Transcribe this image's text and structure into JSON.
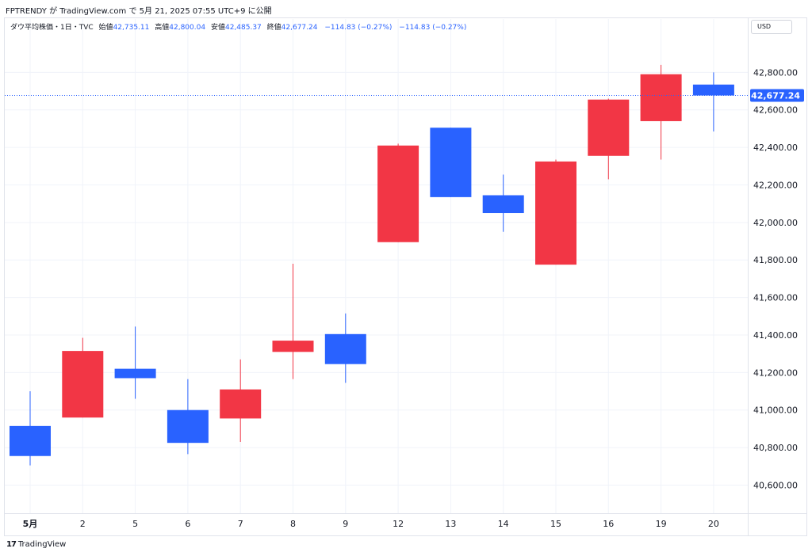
{
  "header": {
    "publish_line": "FPTRENDY が TradingView.com で 5月 21, 2025 07:55 UTC+9 に公開"
  },
  "legend": {
    "symbol": "ダウ平均株価・1日・TVC",
    "open_label": "始値",
    "open_value": "42,735.11",
    "high_label": "高値",
    "high_value": "42,800.04",
    "low_label": "安値",
    "low_value": "42,485.37",
    "close_label": "終値",
    "close_value": "42,677.24",
    "change": "−114.83 (−0.27%)",
    "change_repeat": "−114.83 (−0.27%)"
  },
  "currency_button": "USD",
  "branding": {
    "logo_mark": "17",
    "logo_text": "TradingView"
  },
  "colors": {
    "up": "#2962ff",
    "down": "#f23645",
    "grid": "#f0f3fa",
    "price_line": "#2962ff"
  },
  "chart_data": {
    "type": "candlestick",
    "title": "",
    "ylim": [
      40450,
      43000
    ],
    "y_ticks": [
      40600,
      40800,
      41000,
      41200,
      41400,
      41600,
      41800,
      42000,
      42200,
      42400,
      42600,
      42800
    ],
    "y_tick_labels": [
      "40,600.00",
      "40,800.00",
      "41,000.00",
      "41,200.00",
      "41,400.00",
      "41,600.00",
      "41,800.00",
      "42,000.00",
      "42,200.00",
      "42,400.00",
      "42,600.00",
      "42,800.00"
    ],
    "x_labels": [
      "5月",
      "2",
      "5",
      "6",
      "7",
      "8",
      "9",
      "12",
      "13",
      "14",
      "15",
      "16",
      "19",
      "20"
    ],
    "last_price": 42677.24,
    "last_price_label": "42,677.24",
    "candles": [
      {
        "date": "5月",
        "open": 40915,
        "high": 41100,
        "low": 40705,
        "close": 40755
      },
      {
        "date": "2",
        "open": 40960,
        "high": 41385,
        "low": 40960,
        "close": 41315
      },
      {
        "date": "5",
        "open": 41220,
        "high": 41445,
        "low": 41060,
        "close": 41170
      },
      {
        "date": "6",
        "open": 41000,
        "high": 41165,
        "low": 40765,
        "close": 40825
      },
      {
        "date": "7",
        "open": 40955,
        "high": 41270,
        "low": 40830,
        "close": 41110
      },
      {
        "date": "8",
        "open": 41310,
        "high": 41780,
        "low": 41165,
        "close": 41370
      },
      {
        "date": "9",
        "open": 41405,
        "high": 41515,
        "low": 41145,
        "close": 41245
      },
      {
        "date": "12",
        "open": 41895,
        "high": 42420,
        "low": 41895,
        "close": 42410
      },
      {
        "date": "13",
        "open": 42505,
        "high": 42505,
        "low": 42135,
        "close": 42135
      },
      {
        "date": "14",
        "open": 42145,
        "high": 42255,
        "low": 41950,
        "close": 42050
      },
      {
        "date": "15",
        "open": 41775,
        "high": 42335,
        "low": 41775,
        "close": 42325
      },
      {
        "date": "16",
        "open": 42355,
        "high": 42660,
        "low": 42230,
        "close": 42655
      },
      {
        "date": "19",
        "open": 42540,
        "high": 42840,
        "low": 42335,
        "close": 42790
      },
      {
        "date": "20",
        "open": 42735,
        "high": 42800,
        "low": 42485,
        "close": 42677
      }
    ]
  }
}
